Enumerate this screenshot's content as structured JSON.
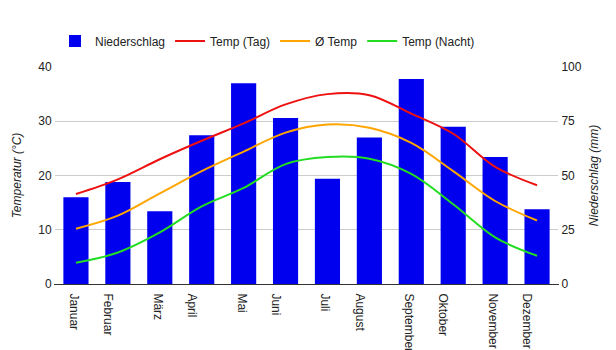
{
  "chart_data": {
    "type": "bar",
    "categories": [
      "Januar",
      "Februar",
      "März",
      "April",
      "Mai",
      "Juni",
      "Juli",
      "August",
      "September",
      "Oktober",
      "November",
      "Dezember"
    ],
    "series": [
      {
        "name": "Niederschlag",
        "type": "bar",
        "axis": "y2",
        "color": "#0000ee",
        "values": [
          40,
          47,
          33.5,
          68.5,
          92.5,
          76.5,
          48.5,
          67.5,
          94.5,
          72.5,
          58.5,
          34.5
        ]
      },
      {
        "name": "Temp (Tag)",
        "type": "line",
        "color": "#ee1111",
        "values": [
          16.6,
          19.3,
          23,
          26.4,
          29.6,
          33.1,
          35,
          34.8,
          31.4,
          27.7,
          21.6,
          18.2
        ]
      },
      {
        "name": "Ø Temp",
        "type": "line",
        "color": "#ffa500",
        "values": [
          10.2,
          12.6,
          16.7,
          20.8,
          24.4,
          27.9,
          29.4,
          28.8,
          26,
          20.8,
          15.3,
          11.7
        ]
      },
      {
        "name": "Temp (Nacht)",
        "type": "line",
        "color": "#22dd22",
        "values": [
          3.9,
          5.8,
          9.5,
          14.3,
          17.7,
          22.1,
          23.4,
          23.1,
          20.3,
          14.7,
          8.6,
          5.2
        ]
      }
    ],
    "y_label": "Temperatur (°C)",
    "y2_label": "Niederschlag (mm)",
    "ylim": [
      0,
      40
    ],
    "yticks": [
      0,
      10,
      20,
      30,
      40
    ],
    "y2lim": [
      0,
      100
    ],
    "y2ticks": [
      0,
      25,
      50,
      75,
      100
    ],
    "grid": true,
    "legend": "top"
  }
}
